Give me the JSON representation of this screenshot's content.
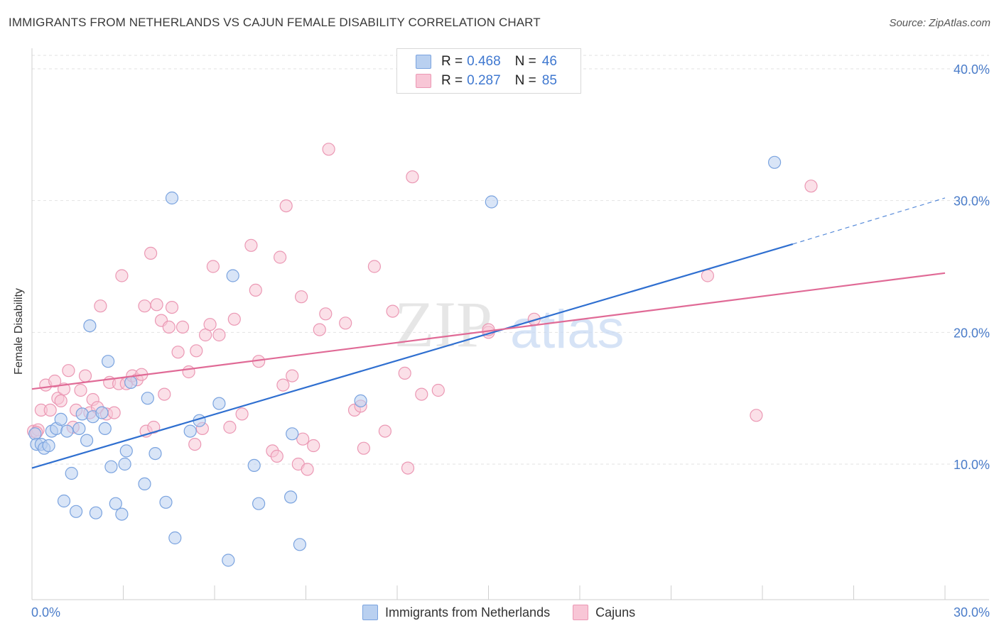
{
  "header": {
    "title": "IMMIGRANTS FROM NETHERLANDS VS CAJUN FEMALE DISABILITY CORRELATION CHART",
    "source": "Source: ZipAtlas.com"
  },
  "watermark": {
    "zip": "ZIP",
    "atlas": "atlas"
  },
  "legend": {
    "rows": [
      {
        "r_label": "R =",
        "r_value": "0.468",
        "n_label": "N =",
        "n_value": "46"
      },
      {
        "r_label": "R =",
        "r_value": "0.287",
        "n_label": "N =",
        "n_value": "85"
      }
    ]
  },
  "bottom_legend": {
    "items": [
      {
        "label": "Immigrants from Netherlands"
      },
      {
        "label": "Cajuns"
      }
    ]
  },
  "colors": {
    "blue_fill": "#b9d0f0",
    "blue_stroke": "#7aa3df",
    "blue_line": "#2f6fd0",
    "pink_fill": "#f8c6d6",
    "pink_stroke": "#eb98b4",
    "pink_line": "#e06a96",
    "grid": "#e2e2e2",
    "tick_text": "#4a7cc9"
  },
  "chart_data": {
    "type": "scatter",
    "title": "IMMIGRANTS FROM NETHERLANDS VS CAJUN FEMALE DISABILITY CORRELATION CHART",
    "xlabel": "",
    "ylabel": "Female Disability",
    "xlim": [
      0,
      30
    ],
    "ylim": [
      0,
      40
    ],
    "x_tick_labels": [
      "0.0%",
      "30.0%"
    ],
    "y_ticks": [
      {
        "value": 10,
        "label": "10.0%"
      },
      {
        "value": 20,
        "label": "20.0%"
      },
      {
        "value": 30,
        "label": "30.0%"
      },
      {
        "value": 40,
        "label": "40.0%"
      }
    ],
    "series": [
      {
        "name": "Immigrants from Netherlands",
        "color_key": "blue",
        "R": 0.468,
        "N": 46,
        "trend": {
          "x0": 0,
          "y0": 9.7,
          "x1": 25,
          "y1": 26.7,
          "dash_to_x": 30,
          "dash_to_y": 30.2
        },
        "points": [
          [
            0.1,
            12.3
          ],
          [
            0.15,
            11.5
          ],
          [
            0.3,
            11.5
          ],
          [
            0.4,
            11.2
          ],
          [
            0.55,
            11.4
          ],
          [
            0.65,
            12.5
          ],
          [
            0.8,
            12.7
          ],
          [
            0.95,
            13.4
          ],
          [
            1.05,
            7.2
          ],
          [
            1.15,
            12.5
          ],
          [
            1.3,
            9.3
          ],
          [
            1.45,
            6.4
          ],
          [
            1.55,
            12.7
          ],
          [
            1.65,
            13.8
          ],
          [
            1.8,
            11.8
          ],
          [
            1.9,
            20.5
          ],
          [
            2.0,
            13.6
          ],
          [
            2.1,
            6.3
          ],
          [
            2.3,
            13.9
          ],
          [
            2.4,
            12.7
          ],
          [
            2.5,
            17.8
          ],
          [
            2.6,
            9.8
          ],
          [
            2.75,
            7.0
          ],
          [
            2.95,
            6.2
          ],
          [
            3.05,
            10.0
          ],
          [
            3.1,
            11.0
          ],
          [
            3.25,
            16.2
          ],
          [
            3.7,
            8.5
          ],
          [
            3.8,
            15.0
          ],
          [
            4.05,
            10.8
          ],
          [
            4.4,
            7.1
          ],
          [
            4.6,
            30.2
          ],
          [
            4.7,
            4.4
          ],
          [
            5.2,
            12.5
          ],
          [
            5.5,
            13.3
          ],
          [
            6.15,
            14.6
          ],
          [
            6.45,
            2.7
          ],
          [
            6.6,
            24.3
          ],
          [
            7.3,
            9.9
          ],
          [
            7.45,
            7.0
          ],
          [
            8.55,
            12.3
          ],
          [
            8.5,
            7.5
          ],
          [
            8.8,
            3.9
          ],
          [
            10.8,
            14.8
          ],
          [
            15.1,
            29.9
          ],
          [
            24.4,
            32.9
          ]
        ]
      },
      {
        "name": "Cajuns",
        "color_key": "pink",
        "R": 0.287,
        "N": 85,
        "trend": {
          "x0": 0,
          "y0": 15.7,
          "x1": 30,
          "y1": 24.5
        },
        "points": [
          [
            0.05,
            12.5
          ],
          [
            0.2,
            12.6
          ],
          [
            0.3,
            14.1
          ],
          [
            0.45,
            16.0
          ],
          [
            0.6,
            14.1
          ],
          [
            0.75,
            16.3
          ],
          [
            0.85,
            15.0
          ],
          [
            0.95,
            14.8
          ],
          [
            1.05,
            15.7
          ],
          [
            1.2,
            17.1
          ],
          [
            1.35,
            12.8
          ],
          [
            1.45,
            14.1
          ],
          [
            1.6,
            15.6
          ],
          [
            1.75,
            16.7
          ],
          [
            1.9,
            13.9
          ],
          [
            2.0,
            14.9
          ],
          [
            2.15,
            14.3
          ],
          [
            2.25,
            22.0
          ],
          [
            2.45,
            13.8
          ],
          [
            2.55,
            16.2
          ],
          [
            2.7,
            13.9
          ],
          [
            2.85,
            16.1
          ],
          [
            2.95,
            24.3
          ],
          [
            3.1,
            16.1
          ],
          [
            3.3,
            16.7
          ],
          [
            3.45,
            16.4
          ],
          [
            3.6,
            16.8
          ],
          [
            3.7,
            22.0
          ],
          [
            3.75,
            12.5
          ],
          [
            3.9,
            26.0
          ],
          [
            4.0,
            12.8
          ],
          [
            4.1,
            22.1
          ],
          [
            4.25,
            20.9
          ],
          [
            4.35,
            15.3
          ],
          [
            4.5,
            20.4
          ],
          [
            4.6,
            21.9
          ],
          [
            4.8,
            18.5
          ],
          [
            4.95,
            20.4
          ],
          [
            5.15,
            17.0
          ],
          [
            5.35,
            11.5
          ],
          [
            5.4,
            18.6
          ],
          [
            5.6,
            12.7
          ],
          [
            5.7,
            19.8
          ],
          [
            5.85,
            20.6
          ],
          [
            5.95,
            25.0
          ],
          [
            6.15,
            19.8
          ],
          [
            6.5,
            12.8
          ],
          [
            6.65,
            21.0
          ],
          [
            6.9,
            13.8
          ],
          [
            7.2,
            26.6
          ],
          [
            7.35,
            23.2
          ],
          [
            7.45,
            17.8
          ],
          [
            7.9,
            11.0
          ],
          [
            8.05,
            10.6
          ],
          [
            8.15,
            25.7
          ],
          [
            8.25,
            16.0
          ],
          [
            8.35,
            29.6
          ],
          [
            8.55,
            16.7
          ],
          [
            8.75,
            10.0
          ],
          [
            8.85,
            22.7
          ],
          [
            8.9,
            11.9
          ],
          [
            9.05,
            9.6
          ],
          [
            9.25,
            11.4
          ],
          [
            9.45,
            20.2
          ],
          [
            9.65,
            21.4
          ],
          [
            9.75,
            33.9
          ],
          [
            10.3,
            20.7
          ],
          [
            10.6,
            14.1
          ],
          [
            10.8,
            14.4
          ],
          [
            10.9,
            11.2
          ],
          [
            11.25,
            25.0
          ],
          [
            11.6,
            12.5
          ],
          [
            11.85,
            21.6
          ],
          [
            12.25,
            16.9
          ],
          [
            12.35,
            9.7
          ],
          [
            12.5,
            31.8
          ],
          [
            12.8,
            15.3
          ],
          [
            13.35,
            15.6
          ],
          [
            15.0,
            20.0
          ],
          [
            15.0,
            20.2
          ],
          [
            16.5,
            21.0
          ],
          [
            22.2,
            24.3
          ],
          [
            23.8,
            13.7
          ],
          [
            25.6,
            31.1
          ],
          [
            0.15,
            12.4
          ]
        ]
      }
    ]
  }
}
